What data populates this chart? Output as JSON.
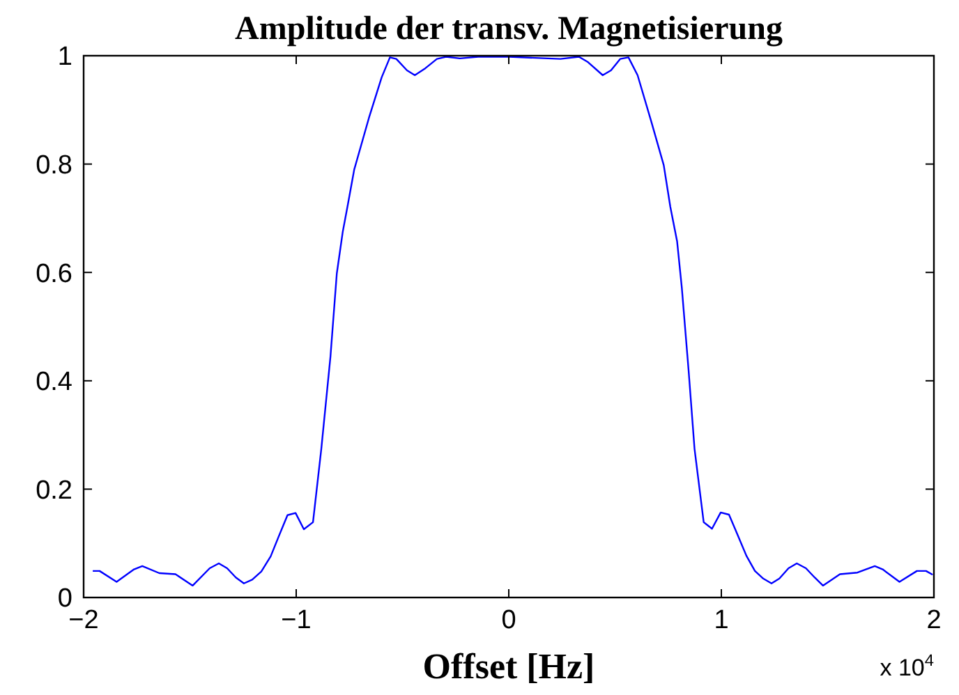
{
  "chart_data": {
    "type": "line",
    "title": "Amplitude der transv. Magnetisierung",
    "xlabel": "Offset [Hz]",
    "annotations": [
      "x 10$^{4}$"
    ],
    "xlim": [
      -2,
      2
    ],
    "ylim": [
      0,
      1
    ],
    "xticks": [
      {
        "value": -2,
        "label": "−2"
      },
      {
        "value": -1,
        "label": "−1"
      },
      0,
      1,
      2
    ],
    "yticks": [
      0,
      0.2,
      0.4,
      0.6,
      0.8,
      1
    ],
    "grid": false,
    "marker": "none",
    "line_style": "solid",
    "series": [
      {
        "color": "#0000ff",
        "x": [
          -1.957,
          -1.925,
          -1.845,
          -1.763,
          -1.724,
          -1.644,
          -1.568,
          -1.487,
          -1.407,
          -1.364,
          -1.325,
          -1.284,
          -1.246,
          -1.207,
          -1.164,
          -1.12,
          -1.083,
          -1.041,
          -1.003,
          -0.964,
          -0.921,
          -0.882,
          -0.839,
          -0.809,
          -0.781,
          -0.759,
          -0.727,
          -0.658,
          -0.598,
          -0.559,
          -0.529,
          -0.479,
          -0.442,
          -0.392,
          -0.338,
          -0.295,
          -0.23,
          -0.144,
          0.002,
          0.243,
          0.33,
          0.373,
          0.442,
          0.481,
          0.524,
          0.563,
          0.606,
          0.67,
          0.729,
          0.76,
          0.792,
          0.814,
          0.846,
          0.874,
          0.917,
          0.956,
          0.997,
          1.036,
          1.074,
          1.118,
          1.158,
          1.197,
          1.236,
          1.273,
          1.316,
          1.355,
          1.398,
          1.439,
          1.478,
          1.558,
          1.64,
          1.722,
          1.759,
          1.838,
          1.92,
          1.963,
          1.994
        ],
        "values": [
          0.049,
          0.049,
          0.029,
          0.052,
          0.058,
          0.045,
          0.043,
          0.022,
          0.054,
          0.063,
          0.054,
          0.037,
          0.026,
          0.033,
          0.048,
          0.076,
          0.112,
          0.152,
          0.156,
          0.126,
          0.139,
          0.274,
          0.444,
          0.598,
          0.675,
          0.721,
          0.79,
          0.885,
          0.96,
          0.997,
          0.994,
          0.973,
          0.964,
          0.977,
          0.994,
          0.998,
          0.995,
          0.998,
          0.998,
          0.994,
          0.998,
          0.988,
          0.964,
          0.973,
          0.994,
          0.997,
          0.964,
          0.879,
          0.798,
          0.721,
          0.657,
          0.572,
          0.419,
          0.274,
          0.139,
          0.127,
          0.157,
          0.153,
          0.118,
          0.077,
          0.049,
          0.035,
          0.026,
          0.035,
          0.054,
          0.063,
          0.054,
          0.037,
          0.022,
          0.043,
          0.046,
          0.058,
          0.052,
          0.029,
          0.049,
          0.049,
          0.042
        ]
      }
    ]
  }
}
